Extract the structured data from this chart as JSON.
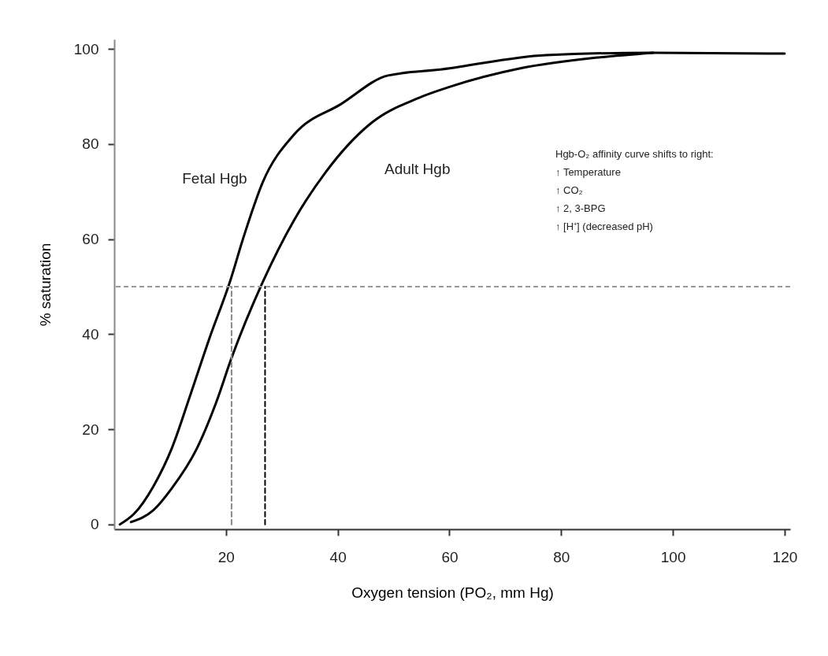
{
  "chart_data": {
    "type": "line",
    "xlabel": "Oxygen tension (PO₂, mm Hg)",
    "ylabel": "% saturation",
    "xlim": [
      0,
      121
    ],
    "ylim": [
      -1,
      102
    ],
    "xticks": [
      20,
      40,
      60,
      80,
      100,
      120
    ],
    "yticks": [
      0,
      20,
      40,
      60,
      80,
      100
    ],
    "grid": false,
    "series": [
      {
        "name": "Fetal Hgb",
        "color": "#000000",
        "x": [
          1,
          3.6,
          7,
          10.3,
          13.7,
          17,
          20.7,
          23.2,
          26.6,
          32.2,
          40.6,
          49,
          58.7,
          77.3,
          96.5,
          120
        ],
        "values": [
          0,
          2.3,
          8,
          16,
          27.5,
          39,
          51,
          60.6,
          72,
          82,
          88.4,
          94.4,
          95.7,
          98.7,
          99.2,
          99
        ]
      },
      {
        "name": "Adult Hgb",
        "color": "#000000",
        "x": [
          3,
          7,
          10.3,
          14.8,
          18.2,
          21,
          26.6,
          32.2,
          37.8,
          46,
          54.5,
          60,
          72.7,
          86.7,
          96.5
        ],
        "values": [
          0.5,
          3,
          7.6,
          16,
          25.5,
          35,
          51,
          64,
          74,
          84.4,
          89.7,
          92,
          95.9,
          98.2,
          99.2
        ]
      },
      {
        "color": "#888888",
        "line_style": "dashed",
        "x": [
          21,
          21
        ],
        "values": [
          0,
          50
        ]
      },
      {
        "color": "#000000",
        "line_style": "dashed",
        "x": [
          27,
          27
        ],
        "values": [
          0,
          50
        ]
      }
    ],
    "ref_lines": [
      {
        "axis": "y",
        "value": 50,
        "color": "#999999",
        "line_style": "dashed"
      }
    ],
    "annotations": [
      "Hgb-O₂ affinity curve shifts to right:",
      "↑ Temperature",
      "↑ CO₂",
      "↑ 2, 3-BPG",
      "↑ [H⁺] (decreased pH)"
    ]
  }
}
